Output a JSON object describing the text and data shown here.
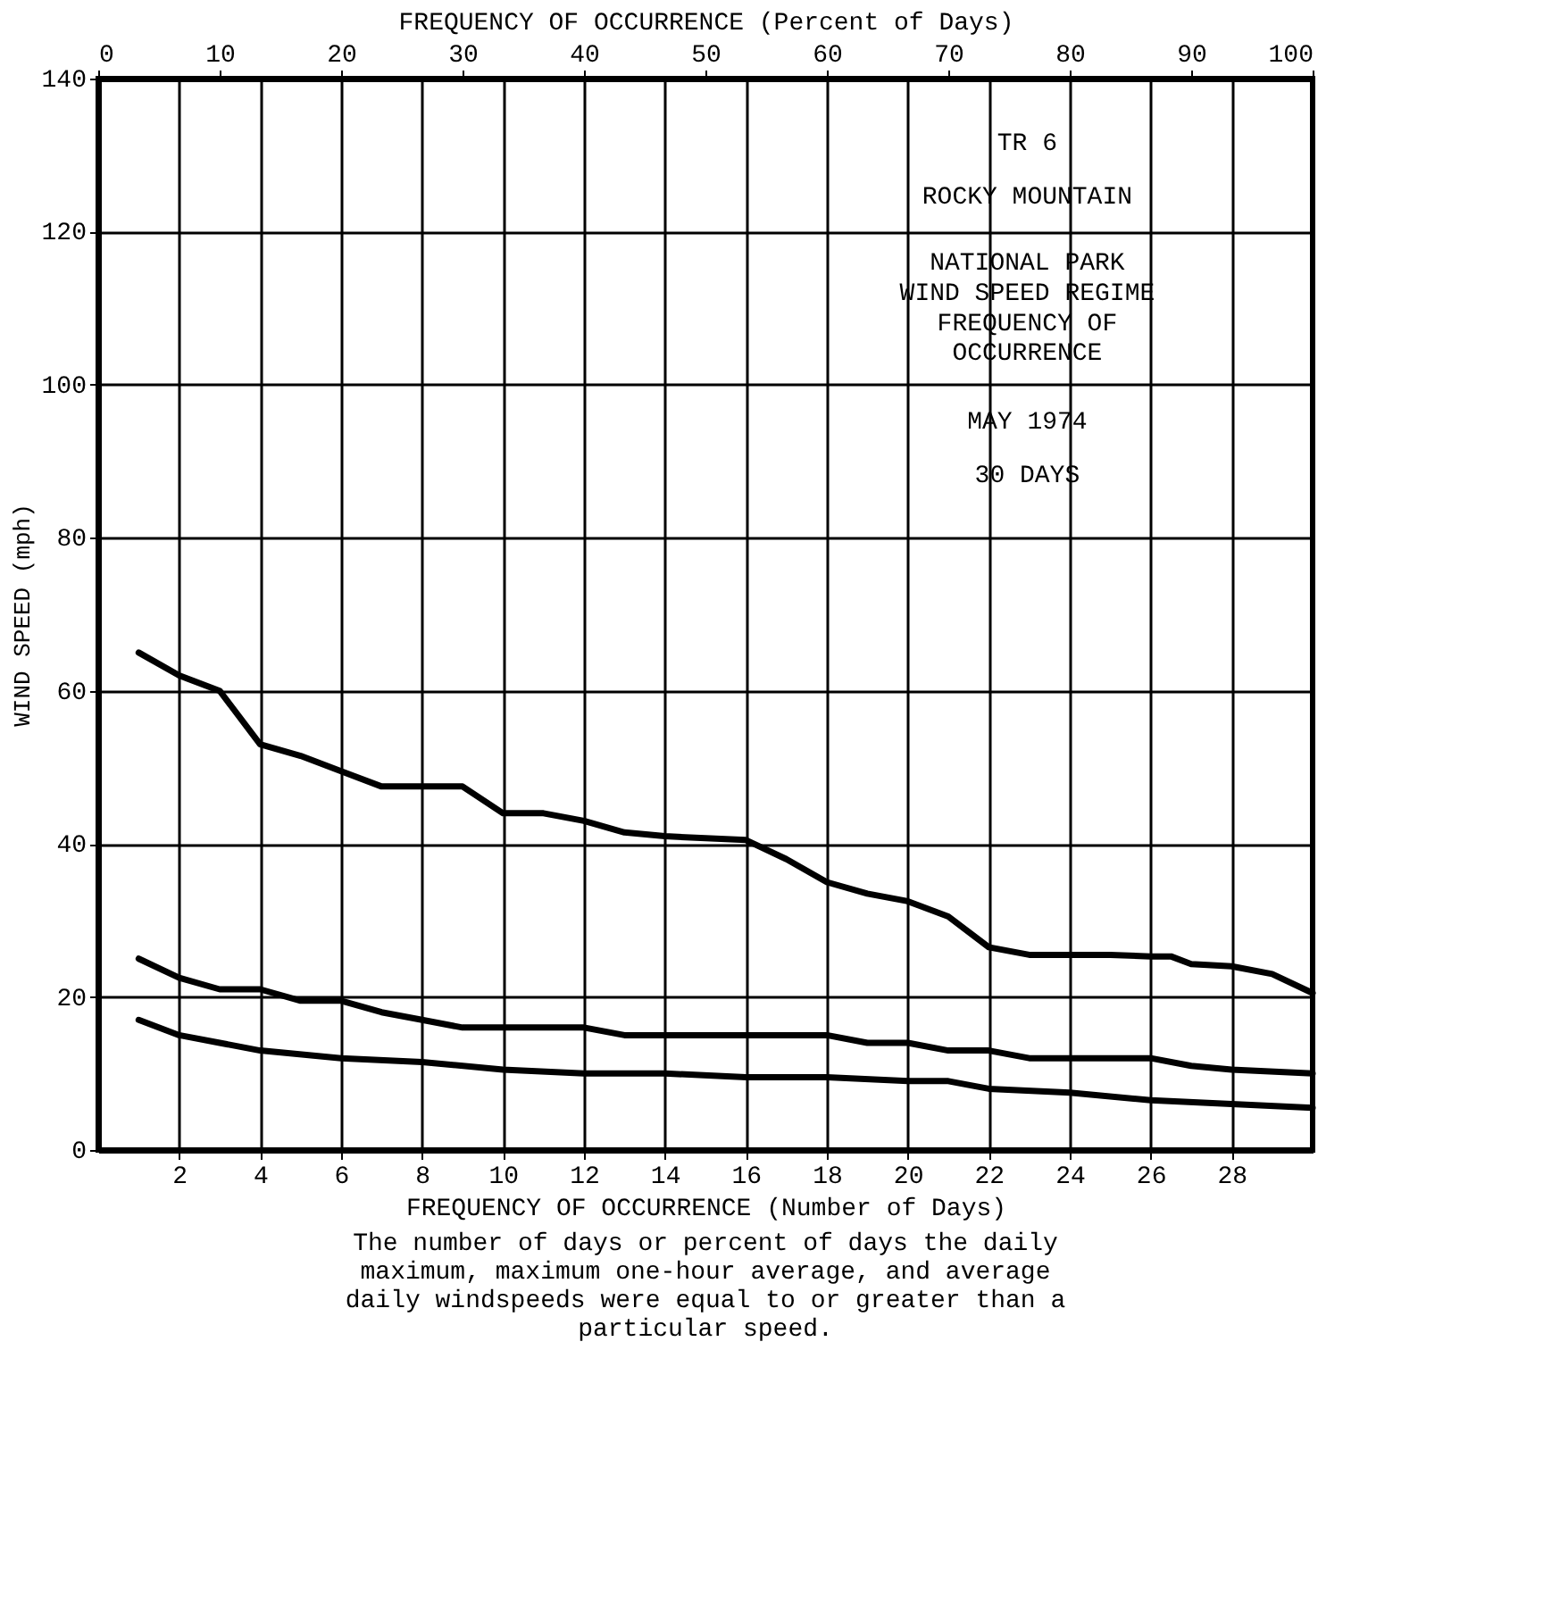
{
  "chart_data": {
    "type": "line",
    "xlabel": "FREQUENCY OF OCCURRENCE (Number of Days)",
    "x2label": "FREQUENCY OF OCCURRENCE (Percent of Days)",
    "ylabel": "WIND SPEED (mph)",
    "xlim": [
      0,
      30
    ],
    "xticks": [
      2,
      4,
      6,
      8,
      10,
      12,
      14,
      16,
      18,
      20,
      22,
      24,
      26,
      28
    ],
    "x2lim": [
      0,
      100
    ],
    "x2ticks": [
      0,
      10,
      20,
      30,
      40,
      50,
      60,
      70,
      80,
      90,
      100
    ],
    "ylim": [
      0,
      140
    ],
    "yticks": [
      0,
      20,
      40,
      60,
      80,
      100,
      120,
      140
    ],
    "grid": true,
    "legend": false,
    "marker": "none",
    "line_style": "solid",
    "series": [
      {
        "color": "#000000",
        "x": [
          1,
          2,
          3,
          4,
          5,
          6,
          7,
          8,
          9,
          10,
          11,
          12,
          13,
          14,
          16,
          17,
          18,
          19,
          20,
          21,
          22,
          23,
          24,
          25,
          26,
          26.5,
          27,
          28,
          29,
          30
        ],
        "values": [
          65,
          62,
          60,
          53,
          51.5,
          49.5,
          47.5,
          47.5,
          47.5,
          44,
          44,
          43,
          41.5,
          41,
          40.5,
          38,
          35,
          33.5,
          32.5,
          30.5,
          26.5,
          25.5,
          25.5,
          25.5,
          25.3,
          25.3,
          24.3,
          24,
          23,
          20.5
        ]
      },
      {
        "color": "#000000",
        "x": [
          1,
          2,
          3,
          4,
          5,
          6,
          7,
          8,
          9,
          10,
          11,
          12,
          13,
          14,
          16,
          18,
          19,
          20,
          21,
          22,
          23,
          24,
          25,
          26,
          27,
          28,
          30
        ],
        "values": [
          25,
          22.5,
          21,
          21,
          19.5,
          19.5,
          18,
          17,
          16,
          16,
          16,
          16,
          15,
          15,
          15,
          15,
          14,
          14,
          13,
          13,
          12,
          12,
          12,
          12,
          11,
          10.5,
          10
        ]
      },
      {
        "color": "#000000",
        "x": [
          1,
          2,
          3,
          4,
          6,
          8,
          10,
          12,
          14,
          16,
          18,
          20,
          21,
          22,
          24,
          26,
          28,
          30
        ],
        "values": [
          17,
          15,
          14,
          13,
          12,
          11.5,
          10.5,
          10,
          10,
          9.5,
          9.5,
          9,
          9,
          8,
          7.5,
          6.5,
          6,
          5.5
        ]
      }
    ],
    "annotations": [
      {
        "text": "TR 6"
      },
      {
        "text": "ROCKY MOUNTAIN"
      },
      {
        "text": "NATIONAL  PARK"
      },
      {
        "text": "WIND SPEED REGIME"
      },
      {
        "text": "FREQUENCY OF"
      },
      {
        "text": "OCCURRENCE"
      },
      {
        "text": "MAY 1974"
      },
      {
        "text": "30  DAYS"
      },
      {
        "text": "The number of days or percent of days the daily maximum, maximum one-hour average, and average daily windspeeds were equal to or greater than a particular speed."
      }
    ]
  }
}
